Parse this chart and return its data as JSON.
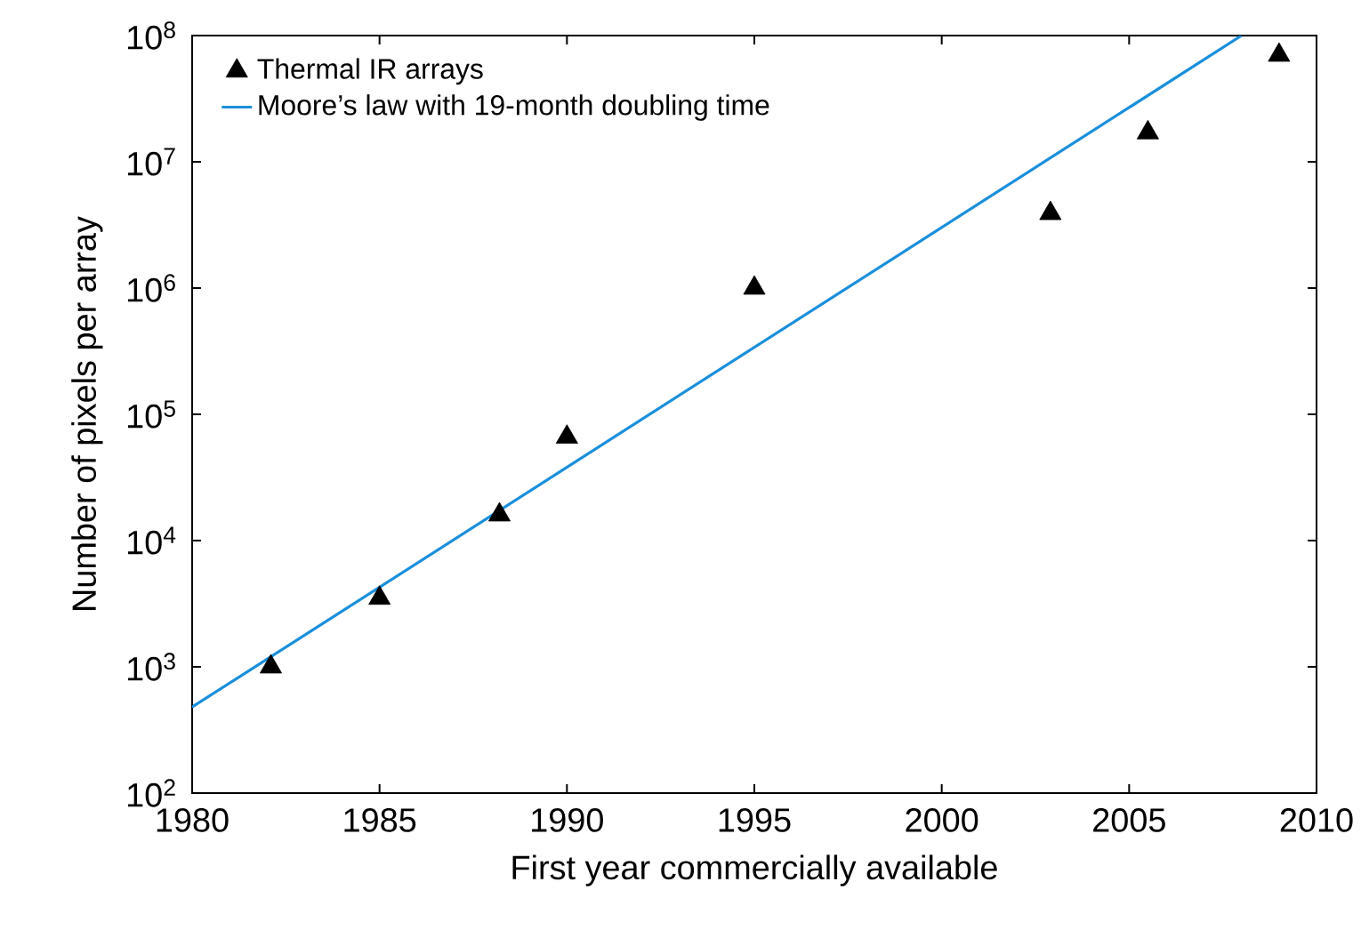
{
  "chart_data": {
    "type": "scatter",
    "xlabel": "First year commercially available",
    "ylabel": "Number of pixels per array",
    "xlim": [
      1980,
      2010
    ],
    "xticks": [
      1980,
      1985,
      1990,
      1995,
      2000,
      2005,
      2010
    ],
    "ylim": [
      100,
      100000000
    ],
    "log": "y",
    "yticks": [
      {
        "value": 100,
        "label": "10$^{2}$"
      },
      {
        "value": 1000,
        "label": "10$^{3}$"
      },
      {
        "value": 10000,
        "label": "10$^{4}$"
      },
      {
        "value": 100000,
        "label": "10$^{5}$"
      },
      {
        "value": 1000000,
        "label": "10$^{6}$"
      },
      {
        "value": 10000000,
        "label": "10$^{7}$"
      },
      {
        "value": 100000000,
        "label": "10$^{8}$"
      }
    ],
    "legend": "top left",
    "grid": false,
    "series": [
      {
        "name": "Thermal IR arrays",
        "marker": "triangle",
        "color": "#000000",
        "x": [
          1982.1,
          1985.0,
          1988.2,
          1990.0,
          1995.0,
          2002.9,
          2005.5,
          2009.0
        ],
        "values": [
          1000,
          3500,
          16000,
          66000,
          1000000,
          3900000,
          17000000,
          70000000
        ]
      },
      {
        "name": "Moore’s law with 19-month doubling time",
        "type": "line",
        "marker": "none",
        "line_style": "solid",
        "color": "#1a8fdc",
        "x": [
          1980,
          2008
        ],
        "values": [
          480,
          100000000
        ]
      }
    ]
  }
}
